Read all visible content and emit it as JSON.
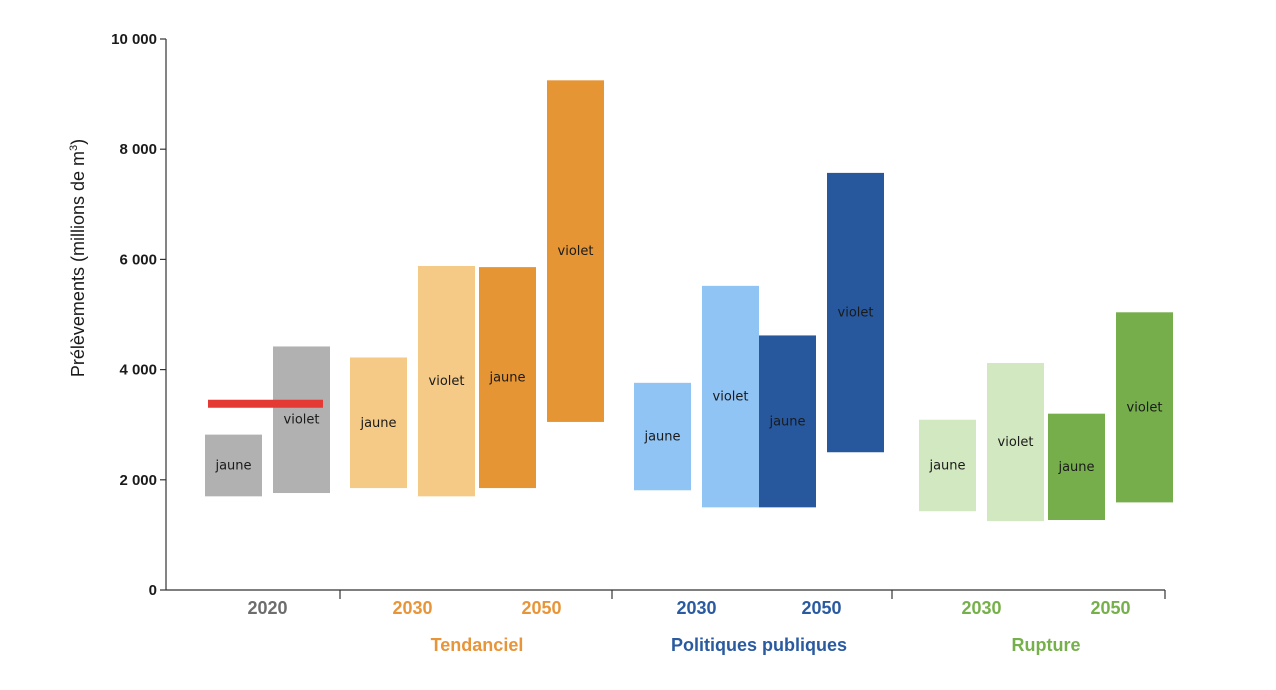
{
  "chart_data": {
    "type": "bar",
    "subtype": "floating-range",
    "ylabel": "Prélèvements (millions de m",
    "ylabel_sup": "3",
    "ylabel_suffix": ")",
    "ylim": [
      0,
      10000
    ],
    "yticks": [
      {
        "value": 0,
        "label": "0"
      },
      {
        "value": 2000,
        "label": "2 000"
      },
      {
        "value": 4000,
        "label": "4 000"
      },
      {
        "value": 6000,
        "label": "6 000"
      },
      {
        "value": 8000,
        "label": "8 000"
      },
      {
        "value": 10000,
        "label": "10 000"
      }
    ],
    "reference_line": {
      "value": 3380,
      "color": "#e53935"
    },
    "groups": [
      {
        "period": "2020",
        "scenario": "",
        "color": "#6d6d6d",
        "bars": [
          {
            "label": "jaune",
            "low": 1700,
            "high": 2820,
            "color": "#b1b1b1"
          },
          {
            "label": "violet",
            "low": 1760,
            "high": 4420,
            "color": "#b1b1b1"
          }
        ]
      },
      {
        "period": "2030",
        "scenario": "Tendanciel",
        "color": "#e8953a",
        "bars": [
          {
            "label": "jaune",
            "low": 1850,
            "high": 4220,
            "color": "#f5c986"
          },
          {
            "label": "violet",
            "low": 1700,
            "high": 5880,
            "color": "#f5c986"
          }
        ]
      },
      {
        "period": "2050",
        "scenario": "Tendanciel",
        "color": "#e8953a",
        "bars": [
          {
            "label": "jaune",
            "low": 1850,
            "high": 5860,
            "color": "#e69535"
          },
          {
            "label": "violet",
            "low": 3050,
            "high": 9250,
            "color": "#e69535"
          }
        ]
      },
      {
        "period": "2030",
        "scenario": "Politiques publiques",
        "color": "#2a5aa0",
        "bars": [
          {
            "label": "jaune",
            "low": 1810,
            "high": 3760,
            "color": "#90c4f5"
          },
          {
            "label": "violet",
            "low": 1500,
            "high": 5520,
            "color": "#90c4f5"
          }
        ]
      },
      {
        "period": "2050",
        "scenario": "Politiques publiques",
        "color": "#2a5aa0",
        "bars": [
          {
            "label": "jaune",
            "low": 1500,
            "high": 4620,
            "color": "#27589e"
          },
          {
            "label": "violet",
            "low": 2500,
            "high": 7570,
            "color": "#27589e"
          }
        ]
      },
      {
        "period": "2030",
        "scenario": "Rupture",
        "color": "#76b04b",
        "bars": [
          {
            "label": "jaune",
            "low": 1430,
            "high": 3090,
            "color": "#d2e8c0"
          },
          {
            "label": "violet",
            "low": 1250,
            "high": 4120,
            "color": "#d2e8c0"
          }
        ]
      },
      {
        "period": "2050",
        "scenario": "Rupture",
        "color": "#76b04b",
        "bars": [
          {
            "label": "jaune",
            "low": 1270,
            "high": 3200,
            "color": "#75ae4b"
          },
          {
            "label": "violet",
            "low": 1590,
            "high": 5040,
            "color": "#75ae4b"
          }
        ]
      }
    ],
    "scenarios": [
      {
        "name": "Tendanciel",
        "color": "#e8953a"
      },
      {
        "name": "Politiques publiques",
        "color": "#2a5aa0"
      },
      {
        "name": "Rupture",
        "color": "#76b04b"
      }
    ]
  }
}
